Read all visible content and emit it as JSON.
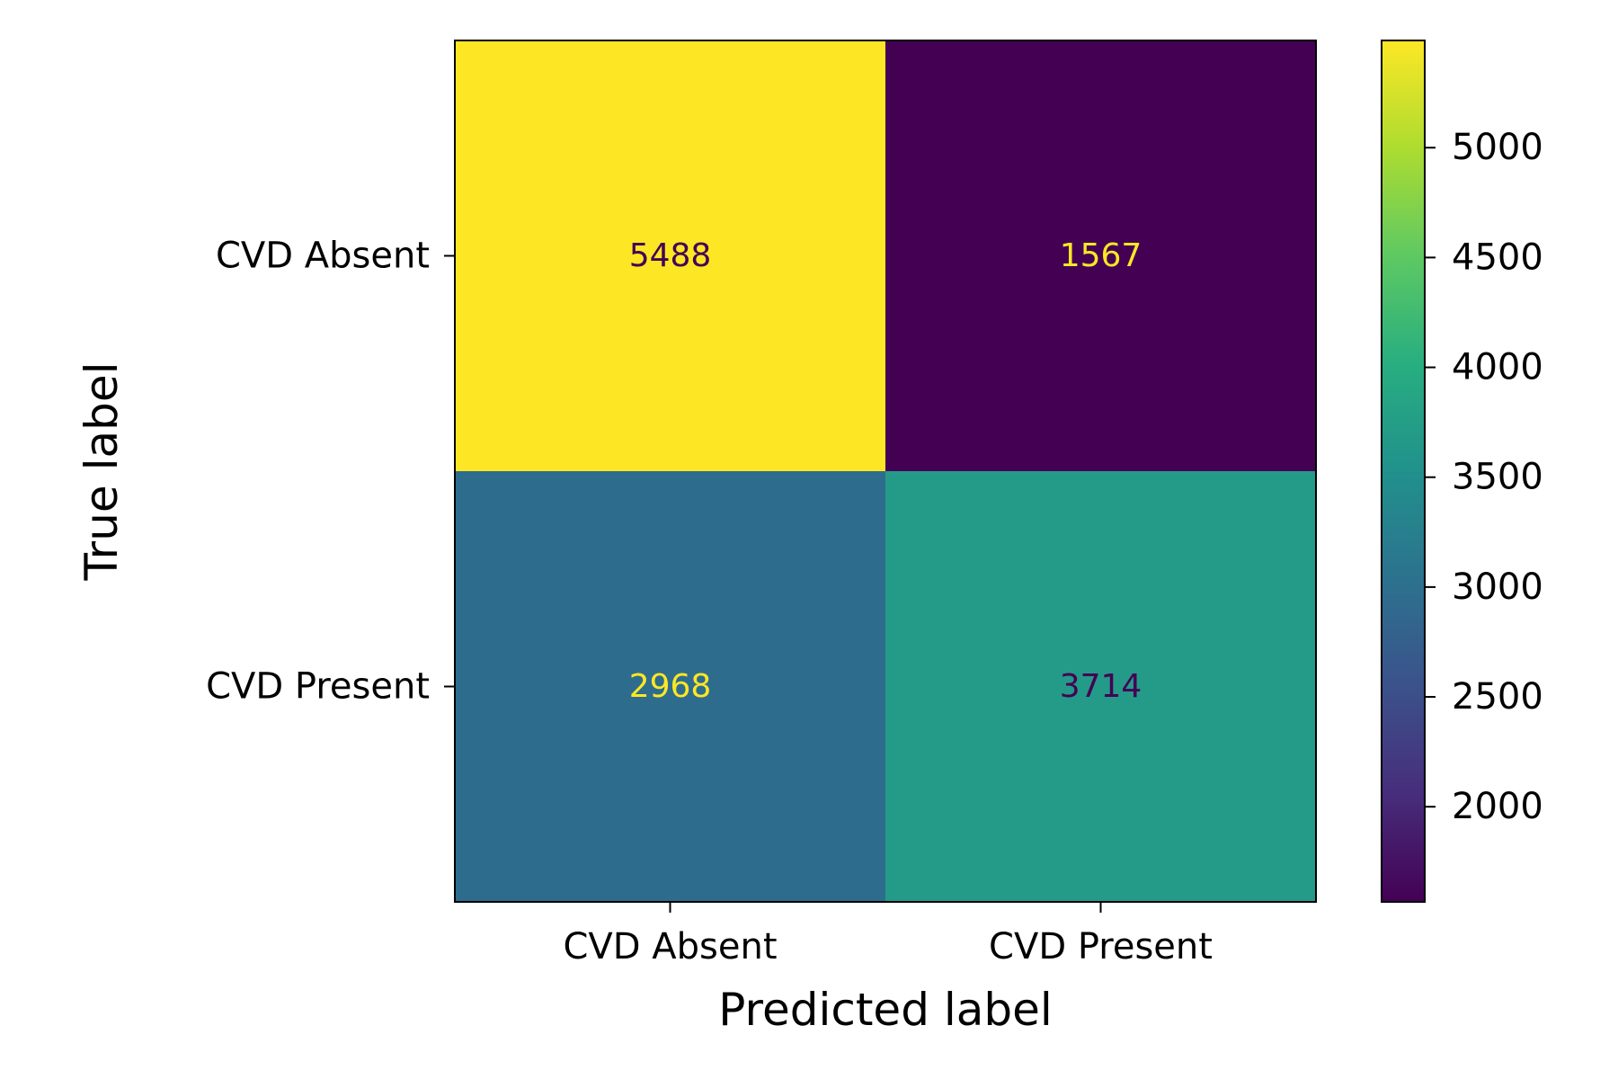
{
  "chart_data": {
    "type": "heatmap",
    "subtype": "confusion-matrix",
    "xlabel": "Predicted label",
    "ylabel": "True label",
    "x_categories": [
      "CVD Absent",
      "CVD Present"
    ],
    "y_categories": [
      "CVD Absent",
      "CVD Present"
    ],
    "values": [
      [
        5488,
        1567
      ],
      [
        2968,
        3714
      ]
    ],
    "value_labels": [
      [
        "5488",
        "1567"
      ],
      [
        "2968",
        "3714"
      ]
    ],
    "colormap": "viridis",
    "colorbar": {
      "range": [
        1567,
        5488
      ],
      "ticks": [
        2000,
        2500,
        3000,
        3500,
        4000,
        4500,
        5000
      ],
      "tick_labels": [
        "2000",
        "2500",
        "3000",
        "3500",
        "4000",
        "4500",
        "5000"
      ]
    },
    "colors": {
      "text_on_dark": "#fde725",
      "text_on_light": "#440154"
    }
  }
}
